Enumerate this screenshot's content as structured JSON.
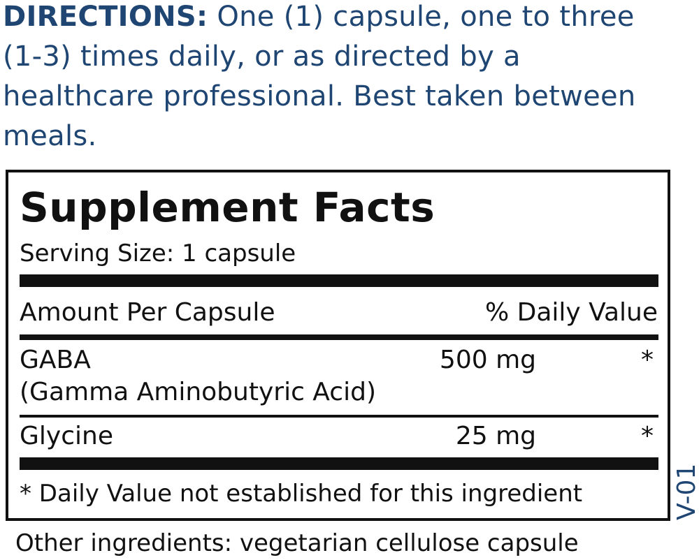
{
  "directions": {
    "label": "DIRECTIONS:",
    "text": "One (1) capsule, one to three (1-3) times daily, or as directed by a healthcare professional. Best taken between meals."
  },
  "facts": {
    "title": "Supplement Facts",
    "serving_size": "Serving Size: 1 capsule",
    "header_amount": "Amount Per Capsule",
    "header_dv": "% Daily Value",
    "ingredients": [
      {
        "name": "GABA",
        "subname": "(Gamma Aminobutyric Acid)",
        "amount": "500 mg",
        "dv": "*"
      },
      {
        "name": "Glycine",
        "amount": "25 mg",
        "dv": "*"
      }
    ],
    "footnote": "* Daily Value not established for this ingredient"
  },
  "other_ingredients": "Other ingredients: vegetarian cellulose capsule",
  "version_code": "V-01",
  "colors": {
    "accent": "#1f4673",
    "text": "#111111"
  }
}
